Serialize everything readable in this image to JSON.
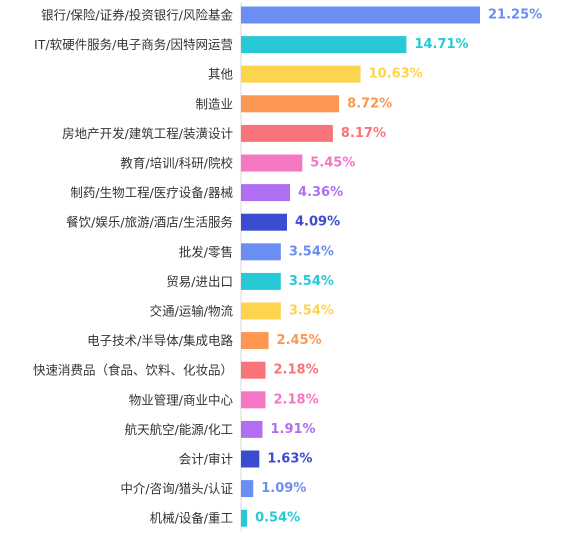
{
  "chart_data": {
    "type": "bar",
    "orientation": "horizontal",
    "categories": [
      "银行/保险/证券/投资银行/风险基金",
      "IT/软硬件服务/电子商务/因特网运营",
      "其他",
      "制造业",
      "房地产开发/建筑工程/装潢设计",
      "教育/培训/科研/院校",
      "制药/生物工程/医疗设备/器械",
      "餐饮/娱乐/旅游/酒店/生活服务",
      "批发/零售",
      "贸易/进出口",
      "交通/运输/物流",
      "电子技术/半导体/集成电路",
      "快速消费品（食品、饮料、化妆品）",
      "物业管理/商业中心",
      "航天航空/能源/化工",
      "会计/审计",
      "中介/咨询/猎头/认证",
      "机械/设备/重工"
    ],
    "values": [
      21.25,
      14.71,
      10.63,
      8.72,
      8.17,
      5.45,
      4.36,
      4.09,
      3.54,
      3.54,
      3.54,
      2.45,
      2.18,
      2.18,
      1.91,
      1.63,
      1.09,
      0.54
    ],
    "value_labels": [
      "21.25%",
      "14.71%",
      "10.63%",
      "8.72%",
      "8.17%",
      "5.45%",
      "4.36%",
      "4.09%",
      "3.54%",
      "3.54%",
      "3.54%",
      "2.45%",
      "2.18%",
      "2.18%",
      "1.91%",
      "1.63%",
      "1.09%",
      "0.54%"
    ],
    "colors": [
      "#6b8ef2",
      "#27c9d6",
      "#fcd44e",
      "#fd9752",
      "#f8747a",
      "#f576c2",
      "#b06ef2",
      "#3a4ccf"
    ],
    "title": "",
    "xlabel": "",
    "ylabel": "",
    "grid": false
  }
}
